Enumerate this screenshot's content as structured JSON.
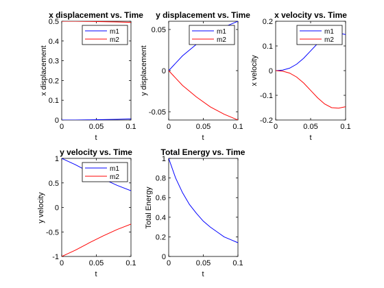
{
  "colors": {
    "m1": "#0000ff",
    "m2": "#ff0000",
    "axis": "#000000",
    "background": "#ffffff"
  },
  "chart_data": [
    {
      "type": "line",
      "title": "x displacement vs. Time",
      "xlabel": "t",
      "ylabel": "x displacement",
      "xlim": [
        0,
        0.1
      ],
      "ylim": [
        0,
        0.5
      ],
      "xticks": [
        0,
        0.05,
        0.1
      ],
      "xticklabels": [
        "0",
        "0.05",
        "0.1"
      ],
      "yticks": [
        0,
        0.1,
        0.2,
        0.3,
        0.4,
        0.5
      ],
      "yticklabels": [
        "0",
        "0.1",
        "0.2",
        "0.3",
        "0.4",
        "0.5"
      ],
      "grid": false,
      "legend": {
        "placement": "top-right",
        "entries": [
          "m1",
          "m2"
        ]
      },
      "series": [
        {
          "name": "m1",
          "color": "#0000ff",
          "x": [
            0,
            0.02,
            0.04,
            0.06,
            0.08,
            0.1
          ],
          "y": [
            0,
            0.0002,
            0.0009,
            0.002,
            0.0036,
            0.0055
          ]
        },
        {
          "name": "m2",
          "color": "#ff0000",
          "x": [
            0,
            0.02,
            0.04,
            0.06,
            0.08,
            0.1
          ],
          "y": [
            0.5,
            0.4998,
            0.4991,
            0.498,
            0.4964,
            0.4945
          ]
        }
      ]
    },
    {
      "type": "line",
      "title": "y displacement vs. Time",
      "xlabel": "t",
      "ylabel": "y displacement",
      "xlim": [
        0,
        0.1
      ],
      "ylim": [
        -0.06,
        0.06
      ],
      "xticks": [
        0,
        0.05,
        0.1
      ],
      "xticklabels": [
        "0",
        "0.05",
        "0.1"
      ],
      "yticks": [
        -0.05,
        0,
        0.05
      ],
      "yticklabels": [
        "-0.05",
        "0",
        "0.05"
      ],
      "grid": false,
      "legend": {
        "placement": "top-right",
        "entries": [
          "m1",
          "m2"
        ]
      },
      "series": [
        {
          "name": "m1",
          "color": "#0000ff",
          "x": [
            0,
            0.02,
            0.04,
            0.06,
            0.08,
            0.1
          ],
          "y": [
            0,
            0.018,
            0.032,
            0.044,
            0.053,
            0.06
          ]
        },
        {
          "name": "m2",
          "color": "#ff0000",
          "x": [
            0,
            0.02,
            0.04,
            0.06,
            0.08,
            0.1
          ],
          "y": [
            0,
            -0.018,
            -0.032,
            -0.044,
            -0.053,
            -0.06
          ]
        }
      ]
    },
    {
      "type": "line",
      "title": "x velocity vs. Time",
      "xlabel": "t",
      "ylabel": "x velocity",
      "xlim": [
        0,
        0.1
      ],
      "ylim": [
        -0.2,
        0.2
      ],
      "xticks": [
        0,
        0.05,
        0.1
      ],
      "xticklabels": [
        "0",
        "0.05",
        "0.1"
      ],
      "yticks": [
        -0.2,
        -0.1,
        0,
        0.1,
        0.2
      ],
      "yticklabels": [
        "-0.2",
        "-0.1",
        "0",
        "0.1",
        "0.2"
      ],
      "grid": false,
      "legend": {
        "placement": "top-right",
        "entries": [
          "m1",
          "m2"
        ]
      },
      "series": [
        {
          "name": "m1",
          "color": "#0000ff",
          "x": [
            0,
            0.01,
            0.02,
            0.03,
            0.04,
            0.05,
            0.06,
            0.07,
            0.08,
            0.09,
            0.1
          ],
          "y": [
            0,
            0.002,
            0.01,
            0.026,
            0.05,
            0.08,
            0.11,
            0.135,
            0.15,
            0.152,
            0.146
          ]
        },
        {
          "name": "m2",
          "color": "#ff0000",
          "x": [
            0,
            0.01,
            0.02,
            0.03,
            0.04,
            0.05,
            0.06,
            0.07,
            0.08,
            0.09,
            0.1
          ],
          "y": [
            0,
            -0.002,
            -0.01,
            -0.026,
            -0.05,
            -0.08,
            -0.11,
            -0.135,
            -0.15,
            -0.152,
            -0.146
          ]
        }
      ]
    },
    {
      "type": "line",
      "title": "y velocity vs. Time",
      "xlabel": "t",
      "ylabel": "y velocity",
      "xlim": [
        0,
        0.1
      ],
      "ylim": [
        -1,
        1
      ],
      "xticks": [
        0,
        0.05,
        0.1
      ],
      "xticklabels": [
        "0",
        "0.05",
        "0.1"
      ],
      "yticks": [
        -1,
        -0.5,
        0,
        0.5,
        1
      ],
      "yticklabels": [
        "-1",
        "-0.5",
        "0",
        "0.5",
        "1"
      ],
      "grid": false,
      "legend": {
        "placement": "top-right",
        "entries": [
          "m1",
          "m2"
        ]
      },
      "series": [
        {
          "name": "m1",
          "color": "#0000ff",
          "x": [
            0,
            0.02,
            0.04,
            0.06,
            0.08,
            0.1
          ],
          "y": [
            1,
            0.87,
            0.72,
            0.58,
            0.45,
            0.34
          ]
        },
        {
          "name": "m2",
          "color": "#ff0000",
          "x": [
            0,
            0.02,
            0.04,
            0.06,
            0.08,
            0.1
          ],
          "y": [
            -1,
            -0.87,
            -0.72,
            -0.58,
            -0.45,
            -0.34
          ]
        }
      ]
    },
    {
      "type": "line",
      "title": "Total Energy vs. Time",
      "xlabel": "t",
      "ylabel": "Total Energy",
      "xlim": [
        0,
        0.1
      ],
      "ylim": [
        0,
        1
      ],
      "xticks": [
        0,
        0.05,
        0.1
      ],
      "xticklabels": [
        "0",
        "0.05",
        "0.1"
      ],
      "yticks": [
        0,
        0.2,
        0.4,
        0.6,
        0.8,
        1
      ],
      "yticklabels": [
        "0",
        "0.2",
        "0.4",
        "0.6",
        "0.8",
        "1"
      ],
      "grid": false,
      "legend": null,
      "series": [
        {
          "color": "#0000ff",
          "x": [
            0,
            0.01,
            0.02,
            0.03,
            0.04,
            0.05,
            0.06,
            0.07,
            0.08,
            0.09,
            0.1
          ],
          "y": [
            1,
            0.8,
            0.65,
            0.53,
            0.44,
            0.36,
            0.3,
            0.25,
            0.2,
            0.17,
            0.14
          ]
        }
      ]
    }
  ]
}
